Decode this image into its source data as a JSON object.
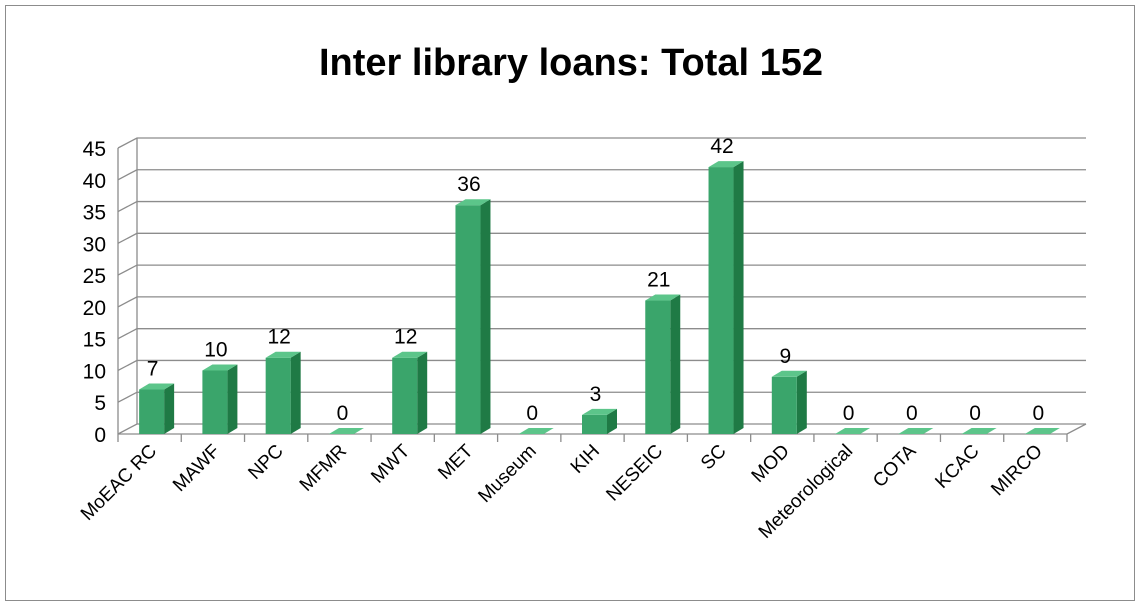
{
  "chart_data": {
    "type": "bar",
    "title": "Inter library loans: Total 152",
    "categories": [
      "MoEAC RC",
      "MAWF",
      "NPC",
      "MFMR",
      "MWT",
      "MET",
      "Museum",
      "KIH",
      "NESEIC",
      "SC",
      "MOD",
      "Meteorological",
      "COTA",
      "KCAC",
      "MIRCO"
    ],
    "values": [
      7,
      10,
      12,
      0,
      12,
      36,
      0,
      3,
      21,
      42,
      9,
      0,
      0,
      0,
      0
    ],
    "ylim": [
      0,
      45
    ],
    "yticks": [
      0,
      5,
      10,
      15,
      20,
      25,
      30,
      35,
      40,
      45
    ],
    "grid": true,
    "legend": "none",
    "bar_color": "#3aa56b",
    "bar_side_color": "#1f7a45",
    "bar_top_color": "#5cc58a"
  }
}
